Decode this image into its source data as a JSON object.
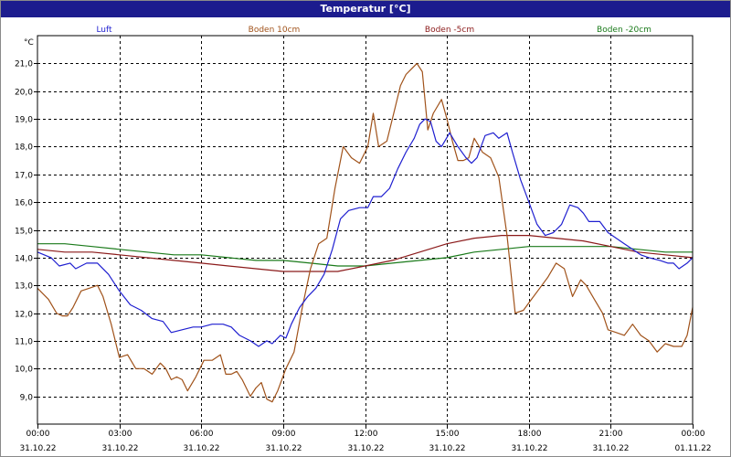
{
  "window": {
    "title": "Temperatur [°C]"
  },
  "chart_data": {
    "type": "line",
    "title": "Temperatur [°C]",
    "ylabel": "°C",
    "ylim": [
      8.0,
      22.0
    ],
    "yticks": [
      "9,0",
      "10,0",
      "11,0",
      "12,0",
      "13,0",
      "14,0",
      "15,0",
      "16,0",
      "17,0",
      "18,0",
      "19,0",
      "20,0",
      "21,0"
    ],
    "xlim": [
      0,
      24
    ],
    "xticks": [
      {
        "t": 0,
        "time": "00:00",
        "date": "31.10.22"
      },
      {
        "t": 3,
        "time": "03:00",
        "date": "31.10.22"
      },
      {
        "t": 6,
        "time": "06:00",
        "date": "31.10.22"
      },
      {
        "t": 9,
        "time": "09:00",
        "date": "31.10.22"
      },
      {
        "t": 12,
        "time": "12:00",
        "date": "31.10.22"
      },
      {
        "t": 15,
        "time": "15:00",
        "date": "31.10.22"
      },
      {
        "t": 18,
        "time": "18:00",
        "date": "31.10.22"
      },
      {
        "t": 21,
        "time": "21:00",
        "date": "31.10.22"
      },
      {
        "t": 24,
        "time": "00:00",
        "date": "01.11.22"
      }
    ],
    "grid": true,
    "legend": "top",
    "series": [
      {
        "name": "Luft",
        "color": "#1f1fd0",
        "points": [
          [
            0,
            14.2
          ],
          [
            0.5,
            14.0
          ],
          [
            0.8,
            13.7
          ],
          [
            1.2,
            13.8
          ],
          [
            1.4,
            13.6
          ],
          [
            1.8,
            13.8
          ],
          [
            2.2,
            13.8
          ],
          [
            2.6,
            13.4
          ],
          [
            3.0,
            12.8
          ],
          [
            3.4,
            12.3
          ],
          [
            3.8,
            12.1
          ],
          [
            4.2,
            11.8
          ],
          [
            4.6,
            11.7
          ],
          [
            4.9,
            11.3
          ],
          [
            5.3,
            11.4
          ],
          [
            5.7,
            11.5
          ],
          [
            6.0,
            11.5
          ],
          [
            6.4,
            11.6
          ],
          [
            6.8,
            11.6
          ],
          [
            7.1,
            11.5
          ],
          [
            7.4,
            11.2
          ],
          [
            7.8,
            11.0
          ],
          [
            8.1,
            10.8
          ],
          [
            8.4,
            11.0
          ],
          [
            8.6,
            10.9
          ],
          [
            8.9,
            11.2
          ],
          [
            9.1,
            11.1
          ],
          [
            9.3,
            11.6
          ],
          [
            9.6,
            12.2
          ],
          [
            9.9,
            12.6
          ],
          [
            10.2,
            12.9
          ],
          [
            10.5,
            13.4
          ],
          [
            10.8,
            14.3
          ],
          [
            11.1,
            15.4
          ],
          [
            11.4,
            15.7
          ],
          [
            11.8,
            15.8
          ],
          [
            12.1,
            15.8
          ],
          [
            12.3,
            16.2
          ],
          [
            12.6,
            16.2
          ],
          [
            12.9,
            16.5
          ],
          [
            13.2,
            17.2
          ],
          [
            13.5,
            17.8
          ],
          [
            13.8,
            18.3
          ],
          [
            14.0,
            18.8
          ],
          [
            14.2,
            19.0
          ],
          [
            14.4,
            18.9
          ],
          [
            14.6,
            18.2
          ],
          [
            14.8,
            18.0
          ],
          [
            15.1,
            18.5
          ],
          [
            15.4,
            18.0
          ],
          [
            15.7,
            17.6
          ],
          [
            15.9,
            17.4
          ],
          [
            16.1,
            17.6
          ],
          [
            16.4,
            18.4
          ],
          [
            16.7,
            18.5
          ],
          [
            16.9,
            18.3
          ],
          [
            17.2,
            18.5
          ],
          [
            17.4,
            17.8
          ],
          [
            17.7,
            16.8
          ],
          [
            18.0,
            16.0
          ],
          [
            18.3,
            15.2
          ],
          [
            18.6,
            14.8
          ],
          [
            18.9,
            14.9
          ],
          [
            19.2,
            15.2
          ],
          [
            19.5,
            15.9
          ],
          [
            19.8,
            15.8
          ],
          [
            20.0,
            15.6
          ],
          [
            20.2,
            15.3
          ],
          [
            20.6,
            15.3
          ],
          [
            20.9,
            14.9
          ],
          [
            21.2,
            14.7
          ],
          [
            21.5,
            14.5
          ],
          [
            21.8,
            14.3
          ],
          [
            22.1,
            14.1
          ],
          [
            22.4,
            14.0
          ],
          [
            22.8,
            13.9
          ],
          [
            23.1,
            13.8
          ],
          [
            23.3,
            13.8
          ],
          [
            23.5,
            13.6
          ],
          [
            23.8,
            13.8
          ],
          [
            24.0,
            14.0
          ]
        ]
      },
      {
        "name": "Boden 10cm",
        "color": "#a0521a",
        "points": [
          [
            0,
            12.9
          ],
          [
            0.4,
            12.5
          ],
          [
            0.7,
            12.0
          ],
          [
            0.9,
            11.9
          ],
          [
            1.1,
            11.9
          ],
          [
            1.3,
            12.2
          ],
          [
            1.6,
            12.8
          ],
          [
            1.9,
            12.9
          ],
          [
            2.2,
            13.0
          ],
          [
            2.4,
            12.6
          ],
          [
            2.7,
            11.6
          ],
          [
            3.0,
            10.4
          ],
          [
            3.3,
            10.5
          ],
          [
            3.6,
            10.0
          ],
          [
            3.9,
            10.0
          ],
          [
            4.2,
            9.8
          ],
          [
            4.5,
            10.2
          ],
          [
            4.7,
            10.0
          ],
          [
            4.9,
            9.6
          ],
          [
            5.1,
            9.7
          ],
          [
            5.3,
            9.6
          ],
          [
            5.5,
            9.2
          ],
          [
            5.8,
            9.7
          ],
          [
            6.1,
            10.3
          ],
          [
            6.4,
            10.3
          ],
          [
            6.7,
            10.5
          ],
          [
            6.9,
            9.8
          ],
          [
            7.1,
            9.8
          ],
          [
            7.3,
            9.9
          ],
          [
            7.5,
            9.6
          ],
          [
            7.8,
            9.0
          ],
          [
            8.0,
            9.3
          ],
          [
            8.2,
            9.5
          ],
          [
            8.4,
            8.9
          ],
          [
            8.6,
            8.8
          ],
          [
            8.8,
            9.2
          ],
          [
            9.1,
            10.0
          ],
          [
            9.4,
            10.6
          ],
          [
            9.7,
            12.2
          ],
          [
            10.0,
            13.6
          ],
          [
            10.3,
            14.5
          ],
          [
            10.6,
            14.7
          ],
          [
            10.9,
            16.5
          ],
          [
            11.2,
            18.0
          ],
          [
            11.5,
            17.6
          ],
          [
            11.8,
            17.4
          ],
          [
            12.1,
            18.0
          ],
          [
            12.3,
            19.2
          ],
          [
            12.5,
            18.0
          ],
          [
            12.8,
            18.2
          ],
          [
            13.1,
            19.4
          ],
          [
            13.3,
            20.2
          ],
          [
            13.5,
            20.6
          ],
          [
            13.7,
            20.8
          ],
          [
            13.9,
            21.0
          ],
          [
            14.1,
            20.7
          ],
          [
            14.3,
            18.6
          ],
          [
            14.5,
            19.2
          ],
          [
            14.8,
            19.7
          ],
          [
            15.0,
            19.0
          ],
          [
            15.2,
            18.2
          ],
          [
            15.4,
            17.5
          ],
          [
            15.6,
            17.5
          ],
          [
            15.8,
            17.6
          ],
          [
            16.0,
            18.3
          ],
          [
            16.3,
            17.8
          ],
          [
            16.6,
            17.6
          ],
          [
            16.9,
            16.9
          ],
          [
            17.2,
            14.8
          ],
          [
            17.5,
            12.0
          ],
          [
            17.8,
            12.1
          ],
          [
            18.1,
            12.5
          ],
          [
            18.4,
            12.9
          ],
          [
            18.7,
            13.3
          ],
          [
            19.0,
            13.8
          ],
          [
            19.3,
            13.6
          ],
          [
            19.6,
            12.6
          ],
          [
            19.9,
            13.2
          ],
          [
            20.1,
            13.0
          ],
          [
            20.4,
            12.5
          ],
          [
            20.7,
            12.0
          ],
          [
            20.9,
            11.4
          ],
          [
            21.2,
            11.3
          ],
          [
            21.5,
            11.2
          ],
          [
            21.8,
            11.6
          ],
          [
            22.1,
            11.2
          ],
          [
            22.4,
            11.0
          ],
          [
            22.7,
            10.6
          ],
          [
            23.0,
            10.9
          ],
          [
            23.3,
            10.8
          ],
          [
            23.6,
            10.8
          ],
          [
            23.8,
            11.2
          ],
          [
            24.0,
            12.2
          ]
        ]
      },
      {
        "name": "Boden -5cm",
        "color": "#8b1a1a",
        "points": [
          [
            0,
            14.3
          ],
          [
            1.0,
            14.2
          ],
          [
            2.0,
            14.2
          ],
          [
            3.0,
            14.1
          ],
          [
            4.0,
            14.0
          ],
          [
            5.0,
            13.9
          ],
          [
            6.0,
            13.8
          ],
          [
            7.0,
            13.7
          ],
          [
            8.0,
            13.6
          ],
          [
            9.0,
            13.5
          ],
          [
            10.0,
            13.5
          ],
          [
            11.0,
            13.5
          ],
          [
            12.0,
            13.7
          ],
          [
            13.0,
            13.9
          ],
          [
            14.0,
            14.2
          ],
          [
            15.0,
            14.5
          ],
          [
            16.0,
            14.7
          ],
          [
            17.0,
            14.8
          ],
          [
            18.0,
            14.8
          ],
          [
            19.0,
            14.7
          ],
          [
            20.0,
            14.6
          ],
          [
            21.0,
            14.4
          ],
          [
            22.0,
            14.2
          ],
          [
            23.0,
            14.1
          ],
          [
            24.0,
            14.0
          ]
        ]
      },
      {
        "name": "Boden -20cm",
        "color": "#1a7a1a",
        "points": [
          [
            0,
            14.5
          ],
          [
            1.0,
            14.5
          ],
          [
            2.0,
            14.4
          ],
          [
            3.0,
            14.3
          ],
          [
            4.0,
            14.2
          ],
          [
            5.0,
            14.1
          ],
          [
            6.0,
            14.1
          ],
          [
            7.0,
            14.0
          ],
          [
            8.0,
            13.9
          ],
          [
            9.0,
            13.9
          ],
          [
            10.0,
            13.8
          ],
          [
            11.0,
            13.7
          ],
          [
            12.0,
            13.7
          ],
          [
            13.0,
            13.8
          ],
          [
            14.0,
            13.9
          ],
          [
            15.0,
            14.0
          ],
          [
            16.0,
            14.2
          ],
          [
            17.0,
            14.3
          ],
          [
            18.0,
            14.4
          ],
          [
            19.0,
            14.4
          ],
          [
            20.0,
            14.4
          ],
          [
            21.0,
            14.4
          ],
          [
            22.0,
            14.3
          ],
          [
            23.0,
            14.2
          ],
          [
            24.0,
            14.2
          ]
        ]
      }
    ]
  }
}
